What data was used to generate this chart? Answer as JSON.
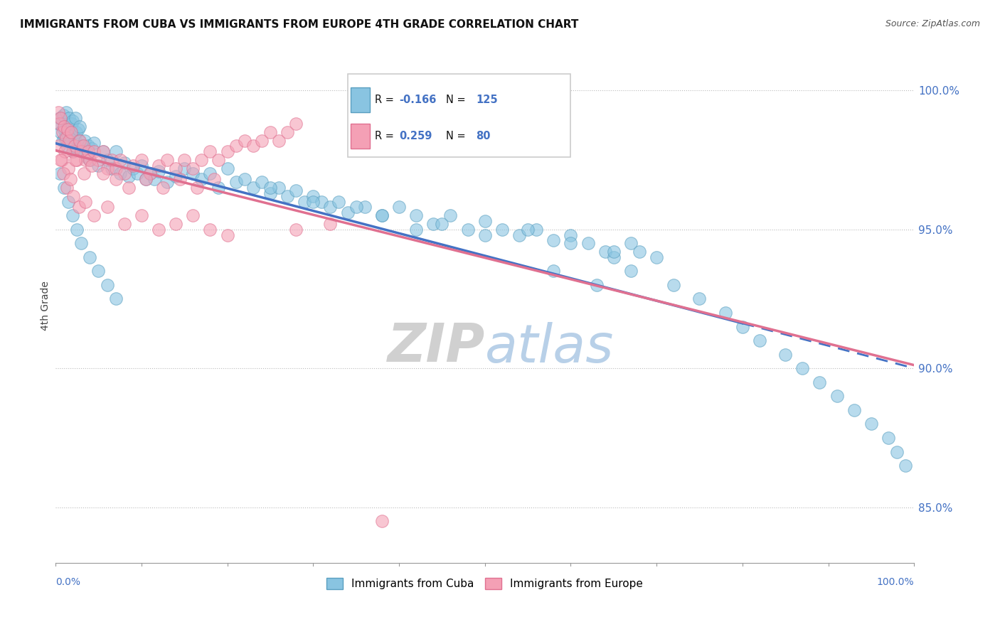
{
  "title": "IMMIGRANTS FROM CUBA VS IMMIGRANTS FROM EUROPE 4TH GRADE CORRELATION CHART",
  "source": "Source: ZipAtlas.com",
  "ylabel": "4th Grade",
  "R_cuba": -0.166,
  "N_cuba": 125,
  "R_europe": 0.259,
  "N_europe": 80,
  "color_cuba": "#89c4e1",
  "color_europe": "#f4a0b5",
  "color_cuba_edge": "#5a9fc0",
  "color_europe_edge": "#e07090",
  "color_cuba_line": "#4472c4",
  "color_europe_line": "#e07090",
  "xlim": [
    0.0,
    100.0
  ],
  "ylim": [
    83.0,
    101.5
  ],
  "right_yticks": [
    85.0,
    90.0,
    95.0,
    100.0
  ],
  "legend_label_cuba": "Immigrants from Cuba",
  "legend_label_europe": "Immigrants from Europe",
  "watermark_text": "ZIPatlas",
  "cuba_points_x": [
    0.3,
    0.5,
    0.6,
    0.8,
    0.9,
    1.0,
    1.1,
    1.2,
    1.3,
    1.4,
    1.5,
    1.6,
    1.7,
    1.8,
    1.9,
    2.0,
    2.1,
    2.2,
    2.3,
    2.4,
    2.5,
    2.6,
    2.7,
    2.8,
    3.0,
    3.2,
    3.4,
    3.6,
    3.8,
    4.0,
    4.2,
    4.5,
    5.0,
    5.5,
    6.0,
    6.5,
    7.0,
    7.5,
    8.0,
    8.5,
    9.0,
    9.5,
    10.0,
    10.5,
    11.0,
    11.5,
    12.0,
    13.0,
    14.0,
    15.0,
    16.0,
    17.0,
    18.0,
    19.0,
    20.0,
    21.0,
    22.0,
    23.0,
    24.0,
    25.0,
    26.0,
    27.0,
    28.0,
    29.0,
    30.0,
    31.0,
    32.0,
    33.0,
    34.0,
    36.0,
    38.0,
    40.0,
    42.0,
    44.0,
    46.0,
    48.0,
    50.0,
    52.0,
    54.0,
    56.0,
    58.0,
    60.0,
    62.0,
    64.0,
    65.0,
    67.0,
    68.0,
    25.0,
    30.0,
    35.0,
    38.0,
    42.0,
    45.0,
    50.0,
    55.0,
    60.0,
    65.0,
    70.0,
    58.0,
    63.0,
    67.0,
    72.0,
    75.0,
    78.0,
    80.0,
    82.0,
    85.0,
    87.0,
    89.0,
    91.0,
    93.0,
    95.0,
    97.0,
    98.0,
    99.0,
    0.5,
    1.0,
    1.5,
    2.0,
    2.5,
    3.0,
    4.0,
    5.0,
    6.0,
    7.0
  ],
  "cuba_points_y": [
    98.8,
    99.0,
    98.5,
    98.2,
    99.1,
    98.6,
    98.3,
    99.2,
    98.0,
    98.7,
    98.4,
    99.0,
    98.1,
    98.5,
    98.8,
    98.9,
    97.8,
    98.3,
    99.0,
    98.5,
    97.9,
    98.6,
    98.2,
    98.7,
    98.0,
    97.8,
    98.2,
    97.6,
    98.0,
    97.5,
    97.9,
    98.1,
    97.3,
    97.8,
    97.5,
    97.2,
    97.8,
    97.0,
    97.4,
    96.9,
    97.2,
    97.0,
    97.3,
    96.8,
    97.0,
    96.8,
    97.1,
    96.7,
    96.9,
    97.2,
    97.0,
    96.8,
    97.0,
    96.5,
    97.2,
    96.7,
    96.8,
    96.5,
    96.7,
    96.3,
    96.5,
    96.2,
    96.4,
    96.0,
    96.2,
    96.0,
    95.8,
    96.0,
    95.6,
    95.8,
    95.5,
    95.8,
    95.5,
    95.2,
    95.5,
    95.0,
    95.3,
    95.0,
    94.8,
    95.0,
    94.6,
    94.8,
    94.5,
    94.2,
    94.0,
    94.5,
    94.2,
    96.5,
    96.0,
    95.8,
    95.5,
    95.0,
    95.2,
    94.8,
    95.0,
    94.5,
    94.2,
    94.0,
    93.5,
    93.0,
    93.5,
    93.0,
    92.5,
    92.0,
    91.5,
    91.0,
    90.5,
    90.0,
    89.5,
    89.0,
    88.5,
    88.0,
    87.5,
    87.0,
    86.5,
    97.0,
    96.5,
    96.0,
    95.5,
    95.0,
    94.5,
    94.0,
    93.5,
    93.0,
    92.5
  ],
  "europe_points_x": [
    0.3,
    0.5,
    0.6,
    0.8,
    1.0,
    1.2,
    1.4,
    1.6,
    1.8,
    2.0,
    2.2,
    2.5,
    2.8,
    3.0,
    3.2,
    3.5,
    3.8,
    4.0,
    4.5,
    5.0,
    5.5,
    6.0,
    6.5,
    7.0,
    7.5,
    8.0,
    9.0,
    10.0,
    11.0,
    12.0,
    13.0,
    14.0,
    15.0,
    16.0,
    17.0,
    18.0,
    19.0,
    20.0,
    21.0,
    22.0,
    23.0,
    24.0,
    25.0,
    26.0,
    27.0,
    28.0,
    0.4,
    0.7,
    1.1,
    1.5,
    2.3,
    3.3,
    4.2,
    5.5,
    7.0,
    8.5,
    10.5,
    12.5,
    14.5,
    16.5,
    18.5,
    0.6,
    0.9,
    1.3,
    1.7,
    2.1,
    2.7,
    3.5,
    4.5,
    6.0,
    8.0,
    10.0,
    12.0,
    14.0,
    16.0,
    18.0,
    20.0,
    28.0,
    32.0,
    38.0
  ],
  "europe_points_y": [
    99.2,
    98.8,
    99.0,
    98.5,
    98.7,
    98.3,
    98.6,
    98.2,
    98.5,
    97.8,
    98.0,
    97.5,
    98.2,
    97.8,
    98.0,
    97.5,
    97.8,
    97.5,
    97.8,
    97.5,
    97.8,
    97.2,
    97.5,
    97.2,
    97.5,
    97.0,
    97.3,
    97.5,
    97.0,
    97.3,
    97.5,
    97.2,
    97.5,
    97.2,
    97.5,
    97.8,
    97.5,
    97.8,
    98.0,
    98.2,
    98.0,
    98.2,
    98.5,
    98.2,
    98.5,
    98.8,
    98.0,
    97.5,
    97.8,
    97.2,
    97.5,
    97.0,
    97.3,
    97.0,
    96.8,
    96.5,
    96.8,
    96.5,
    96.8,
    96.5,
    96.8,
    97.5,
    97.0,
    96.5,
    96.8,
    96.2,
    95.8,
    96.0,
    95.5,
    95.8,
    95.2,
    95.5,
    95.0,
    95.2,
    95.5,
    95.0,
    94.8,
    95.0,
    95.2,
    84.5
  ]
}
